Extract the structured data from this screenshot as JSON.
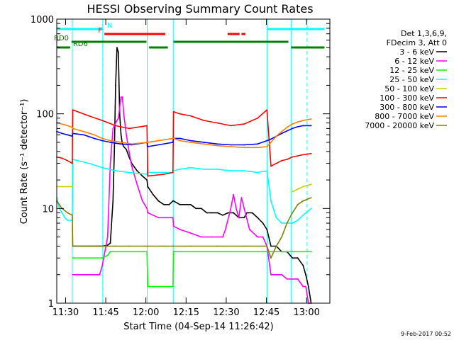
{
  "chart_data": {
    "type": "line",
    "title": "HESSI Observing Summary Count Rates",
    "xlabel": "Start Time (04-Sep-14 11:26:42)",
    "ylabel": "Count Rate (s⁻¹ detector⁻¹)",
    "x_unit": "minutes after 11:26:42 start time",
    "xlim": [
      0,
      102
    ],
    "ylim": [
      1,
      1000
    ],
    "yscale": "log",
    "grid": false,
    "x_ticks": [
      {
        "value": 3.3,
        "label": "11:30"
      },
      {
        "value": 18.3,
        "label": "11:45"
      },
      {
        "value": 33.3,
        "label": "12:00"
      },
      {
        "value": 48.3,
        "label": "12:15"
      },
      {
        "value": 63.3,
        "label": "12:30"
      },
      {
        "value": 78.3,
        "label": "12:45"
      },
      {
        "value": 93.3,
        "label": "13:00"
      }
    ],
    "y_ticks": [
      {
        "value": 1,
        "label": "1"
      },
      {
        "value": 10,
        "label": "10"
      },
      {
        "value": 100,
        "label": "100"
      },
      {
        "value": 1000,
        "label": "1000"
      }
    ],
    "legend": {
      "placement": "right",
      "header": [
        "Det 1,3,6,9,",
        "FDecim 3, Att 0"
      ],
      "entries": [
        {
          "label": "3 - 6 keV",
          "color": "#000000"
        },
        {
          "label": "6 - 12 keV",
          "color": "#ff00ff"
        },
        {
          "label": "12 - 25 keV",
          "color": "#00ff00"
        },
        {
          "label": "25 - 50 keV",
          "color": "#00ffff"
        },
        {
          "label": "50 - 100 keV",
          "color": "#cccc00"
        },
        {
          "label": "100 - 300 keV",
          "color": "#ff0000"
        },
        {
          "label": "300 - 800 keV",
          "color": "#0000ff"
        },
        {
          "label": "800 - 7000 keV",
          "color": "#ff8000"
        },
        {
          "label": "7000 - 20000 keV",
          "color": "#808000"
        }
      ]
    },
    "night_boundaries": [
      5.8,
      17.2,
      33.8,
      43.5,
      78.6,
      87.5
    ],
    "dashed_markers": [
      17.2,
      93.5
    ],
    "flags": [
      {
        "label": "N",
        "color": "#00ffff",
        "ranges": [
          [
            0,
            17.2
          ],
          [
            78.6,
            100
          ]
        ]
      },
      {
        "label": "F",
        "color": "#ff0000",
        "ranges": [
          [
            17.8,
            40.5
          ],
          [
            63.8,
            68.3
          ],
          [
            69.0,
            70.5
          ]
        ]
      },
      {
        "label": "RD0",
        "color": "#008000",
        "ranges": [
          [
            5.5,
            33.5
          ],
          [
            43.6,
            86.5
          ]
        ]
      },
      {
        "label": "RD6",
        "color": "#008000",
        "ranges": [
          [
            0,
            5.0
          ],
          [
            34.5,
            41.5
          ],
          [
            87.5,
            100
          ]
        ]
      }
    ],
    "series": [
      {
        "name": "3 - 6 keV",
        "color": "#000000",
        "x": [
          0,
          5.8,
          6,
          12,
          15,
          16,
          17,
          19,
          20,
          21,
          21.5,
          22,
          22.5,
          23,
          23.5,
          24,
          24.5,
          25,
          26,
          27,
          28,
          30,
          32,
          33.7,
          34,
          36,
          38,
          40,
          42,
          43.4,
          43.6,
          46,
          50,
          52,
          54,
          56,
          58,
          60,
          62,
          64,
          66,
          68,
          70,
          71,
          73,
          75,
          77,
          78.5,
          80,
          82,
          84,
          86,
          88,
          90,
          92,
          93,
          94,
          95
        ],
        "y": [
          null,
          null,
          4,
          4,
          4,
          4,
          4,
          4.1,
          4.3,
          12,
          40,
          200,
          500,
          450,
          100,
          60,
          48,
          45,
          42,
          35,
          30,
          25,
          22,
          20,
          17,
          14,
          12,
          11,
          11,
          12,
          12,
          11,
          11,
          10,
          10,
          9,
          9,
          9,
          8.5,
          9,
          9,
          8,
          8,
          9,
          9,
          8,
          7,
          6,
          4,
          4,
          3.5,
          3.5,
          3,
          3,
          2.5,
          2,
          1.5,
          1
        ]
      },
      {
        "name": "6 - 12 keV",
        "color": "#ff00ff",
        "x": [
          0,
          5.8,
          6,
          12,
          15,
          16,
          17,
          19,
          20,
          21,
          22,
          23,
          24,
          24.5,
          25,
          26,
          27,
          28,
          30,
          32,
          33.7,
          34,
          36,
          38,
          40,
          42,
          43.4,
          43.6,
          46,
          50,
          54,
          58,
          62,
          63,
          65,
          66,
          67,
          68,
          69,
          70,
          72,
          75,
          77,
          78.5,
          80,
          82,
          84,
          86,
          88,
          90,
          92,
          93,
          94,
          95
        ],
        "y": [
          null,
          null,
          2,
          2,
          2,
          2,
          2.5,
          5,
          30,
          70,
          80,
          90,
          150,
          150,
          100,
          60,
          40,
          28,
          18,
          12,
          10,
          9,
          8.5,
          8,
          8,
          8,
          8,
          6.5,
          6,
          5.5,
          5,
          5,
          5,
          6,
          10,
          14,
          10,
          8,
          13,
          10,
          6,
          5,
          5,
          4,
          2,
          2,
          2,
          1.8,
          1.8,
          1.8,
          1.5,
          1.5,
          1,
          1
        ]
      },
      {
        "name": "12 - 25 keV",
        "color": "#00ff00",
        "x": [
          0,
          5.8,
          6,
          12,
          15,
          17,
          19,
          20,
          22,
          24,
          26,
          28,
          30,
          32,
          33.7,
          34,
          36,
          38,
          40,
          42,
          43.4,
          43.6,
          46,
          50,
          55,
          60,
          65,
          70,
          75,
          78.5,
          80,
          82,
          84,
          86,
          88,
          90,
          92,
          95
        ],
        "y": [
          null,
          null,
          3,
          3,
          3,
          3,
          3.2,
          3.5,
          3.5,
          3.5,
          3.5,
          3.5,
          3.5,
          3.5,
          3.5,
          1.5,
          1.5,
          1.5,
          1.5,
          1.5,
          1.5,
          3.5,
          3.5,
          3.5,
          3.5,
          3.5,
          3.5,
          3.5,
          3.5,
          3.5,
          3.5,
          3.5,
          3.5,
          3.5,
          3.5,
          3.5,
          3.5,
          3.5
        ]
      },
      {
        "name": "25 - 50 keV",
        "color": "#00ffff",
        "x": [
          0,
          1,
          2,
          3,
          4,
          5.8,
          6,
          12,
          17,
          22,
          27,
          33.7,
          34,
          40,
          43.4,
          43.6,
          46,
          50,
          55,
          60,
          65,
          70,
          75,
          78.5,
          80,
          82,
          84,
          86,
          88,
          90,
          92,
          95
        ],
        "y": [
          13,
          10,
          9,
          8,
          7.5,
          7.5,
          33,
          30,
          27,
          25,
          24,
          23,
          24,
          24,
          24,
          25,
          26,
          27,
          26,
          26,
          25,
          25,
          24,
          25,
          12,
          8,
          7,
          7,
          7,
          7.5,
          8.5,
          10
        ]
      },
      {
        "name": "50 - 100 keV",
        "color": "#cccc00",
        "x": [
          0,
          2,
          4,
          5.8,
          6,
          12,
          17,
          22,
          27,
          33.7,
          34,
          40,
          43.4,
          43.6,
          46,
          55,
          65,
          75,
          78.5,
          80,
          82,
          84,
          86,
          88,
          90,
          92,
          95
        ],
        "y": [
          17,
          17,
          17,
          17,
          null,
          null,
          null,
          null,
          null,
          null,
          null,
          null,
          null,
          null,
          null,
          null,
          null,
          null,
          null,
          null,
          null,
          null,
          null,
          15,
          16,
          17,
          18
        ]
      },
      {
        "name": "100 - 300 keV",
        "color": "#ff0000",
        "x": [
          0,
          2,
          4,
          5.8,
          6,
          12,
          17,
          22,
          27,
          33.7,
          34,
          40,
          43.4,
          43.6,
          46,
          50,
          55,
          60,
          65,
          70,
          75,
          78.5,
          80,
          82,
          84,
          86,
          88,
          90,
          92,
          95
        ],
        "y": [
          35,
          34,
          32,
          30,
          110,
          95,
          85,
          75,
          70,
          75,
          22,
          23,
          24,
          105,
          100,
          95,
          85,
          80,
          75,
          78,
          90,
          110,
          28,
          30,
          32,
          33,
          35,
          36,
          37,
          38
        ]
      },
      {
        "name": "300 - 800 keV",
        "color": "#0000ff",
        "x": [
          0,
          2,
          4,
          5.8,
          6,
          10,
          14,
          17,
          20,
          24,
          28,
          33.7,
          34,
          38,
          43.4,
          43.6,
          46,
          50,
          55,
          60,
          65,
          70,
          75,
          78.5,
          80,
          82,
          84,
          86,
          88,
          90,
          92,
          95
        ],
        "y": [
          65,
          62,
          60,
          58,
          62,
          60,
          55,
          52,
          50,
          48,
          47,
          50,
          45,
          47,
          50,
          55,
          55,
          52,
          50,
          48,
          47,
          47,
          48,
          52,
          54,
          58,
          62,
          66,
          70,
          73,
          75,
          75
        ]
      },
      {
        "name": "800 - 7000 keV",
        "color": "#ff8000",
        "x": [
          0,
          2,
          4,
          5.8,
          6,
          10,
          14,
          17,
          20,
          24,
          28,
          33.7,
          34,
          38,
          43.4,
          43.6,
          46,
          50,
          55,
          60,
          65,
          70,
          75,
          78.5,
          80,
          82,
          84,
          86,
          88,
          90,
          92,
          95
        ],
        "y": [
          80,
          78,
          75,
          72,
          70,
          65,
          60,
          55,
          52,
          50,
          48,
          50,
          50,
          52,
          55,
          55,
          52,
          50,
          48,
          46,
          45,
          44,
          44,
          45,
          50,
          58,
          65,
          72,
          78,
          82,
          85,
          88
        ]
      },
      {
        "name": "7000 - 20000 keV",
        "color": "#808000",
        "x": [
          0,
          2,
          4,
          5.8,
          6,
          12,
          17,
          22,
          27,
          33.7,
          34,
          40,
          43.4,
          43.6,
          50,
          60,
          70,
          78.5,
          80,
          82,
          84,
          86,
          88,
          90,
          92,
          95
        ],
        "y": [
          12,
          10,
          9,
          8.5,
          4,
          4,
          4,
          4,
          4,
          4,
          4,
          4,
          4,
          4,
          4,
          4,
          4,
          4,
          3,
          4,
          5,
          7,
          9,
          11,
          12,
          13
        ]
      }
    ]
  },
  "stamp": "9-Feb-2017 00:52"
}
